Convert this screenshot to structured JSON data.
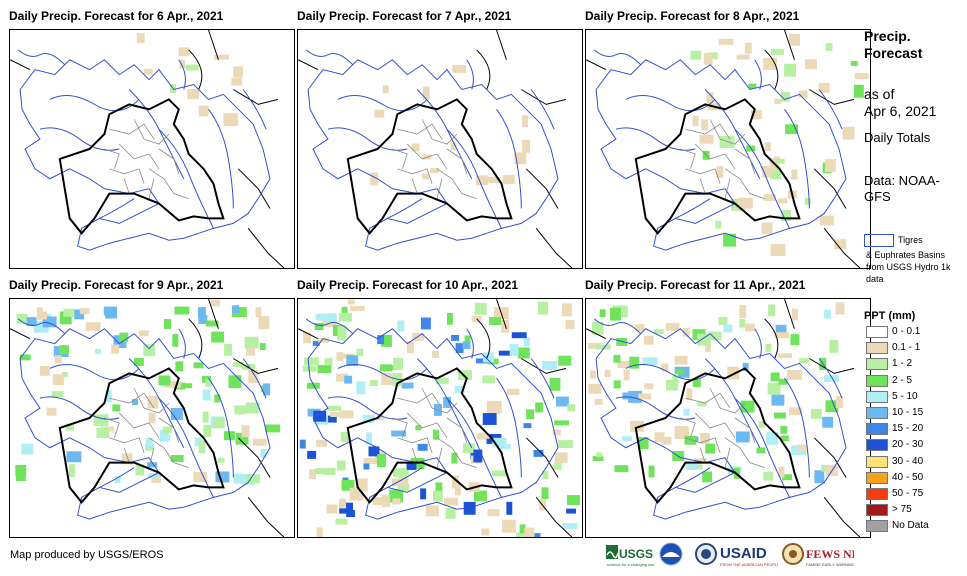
{
  "panels": [
    {
      "title": "Daily Precip. Forecast for 6 Apr., 2021",
      "level": 0
    },
    {
      "title": "Daily Precip. Forecast for 7 Apr., 2021",
      "level": 1
    },
    {
      "title": "Daily Precip. Forecast for 8 Apr., 2021",
      "level": 2
    },
    {
      "title": "Daily Precip. Forecast for 9 Apr., 2021",
      "level": 3
    },
    {
      "title": "Daily Precip. Forecast for 10 Apr., 2021",
      "level": 4
    },
    {
      "title": "Daily Precip. Forecast for 11 Apr., 2021",
      "level": 3
    }
  ],
  "legend": {
    "title": "Precip. Forecast",
    "as_of_line1": "as of",
    "as_of_line2": "Apr 6, 2021",
    "daily": "Daily Totals",
    "data": "Data: NOAA-GFS",
    "basin_label1": "Tigres",
    "basin_label2": "& Euphrates Basins from USGS Hydro 1k data",
    "basin_color": "#3050d0",
    "ppt_title": "PPT (mm)",
    "classes": [
      {
        "label": "0 - 0.1",
        "color": "#ffffff"
      },
      {
        "label": "0.1 - 1",
        "color": "#ecd9b8"
      },
      {
        "label": "1 - 2",
        "color": "#b7f0a3"
      },
      {
        "label": "2 - 5",
        "color": "#6fe35a"
      },
      {
        "label": "5 - 10",
        "color": "#aeeef4"
      },
      {
        "label": "10 - 15",
        "color": "#6cb8f0"
      },
      {
        "label": "15 - 20",
        "color": "#3f86e8"
      },
      {
        "label": "20 - 30",
        "color": "#1c52d6"
      },
      {
        "label": "30 - 40",
        "color": "#fde27a"
      },
      {
        "label": "40 - 50",
        "color": "#f5a21c"
      },
      {
        "label": "50 - 75",
        "color": "#f23d12"
      },
      {
        "label": "> 75",
        "color": "#a31a1a"
      },
      {
        "label": "No Data",
        "color": "#a0a0a0"
      }
    ]
  },
  "footer": {
    "credit": "Map produced by USGS/EROS",
    "logos": [
      "USGS",
      "NOAA",
      "USAID",
      "FEWS NET"
    ]
  }
}
